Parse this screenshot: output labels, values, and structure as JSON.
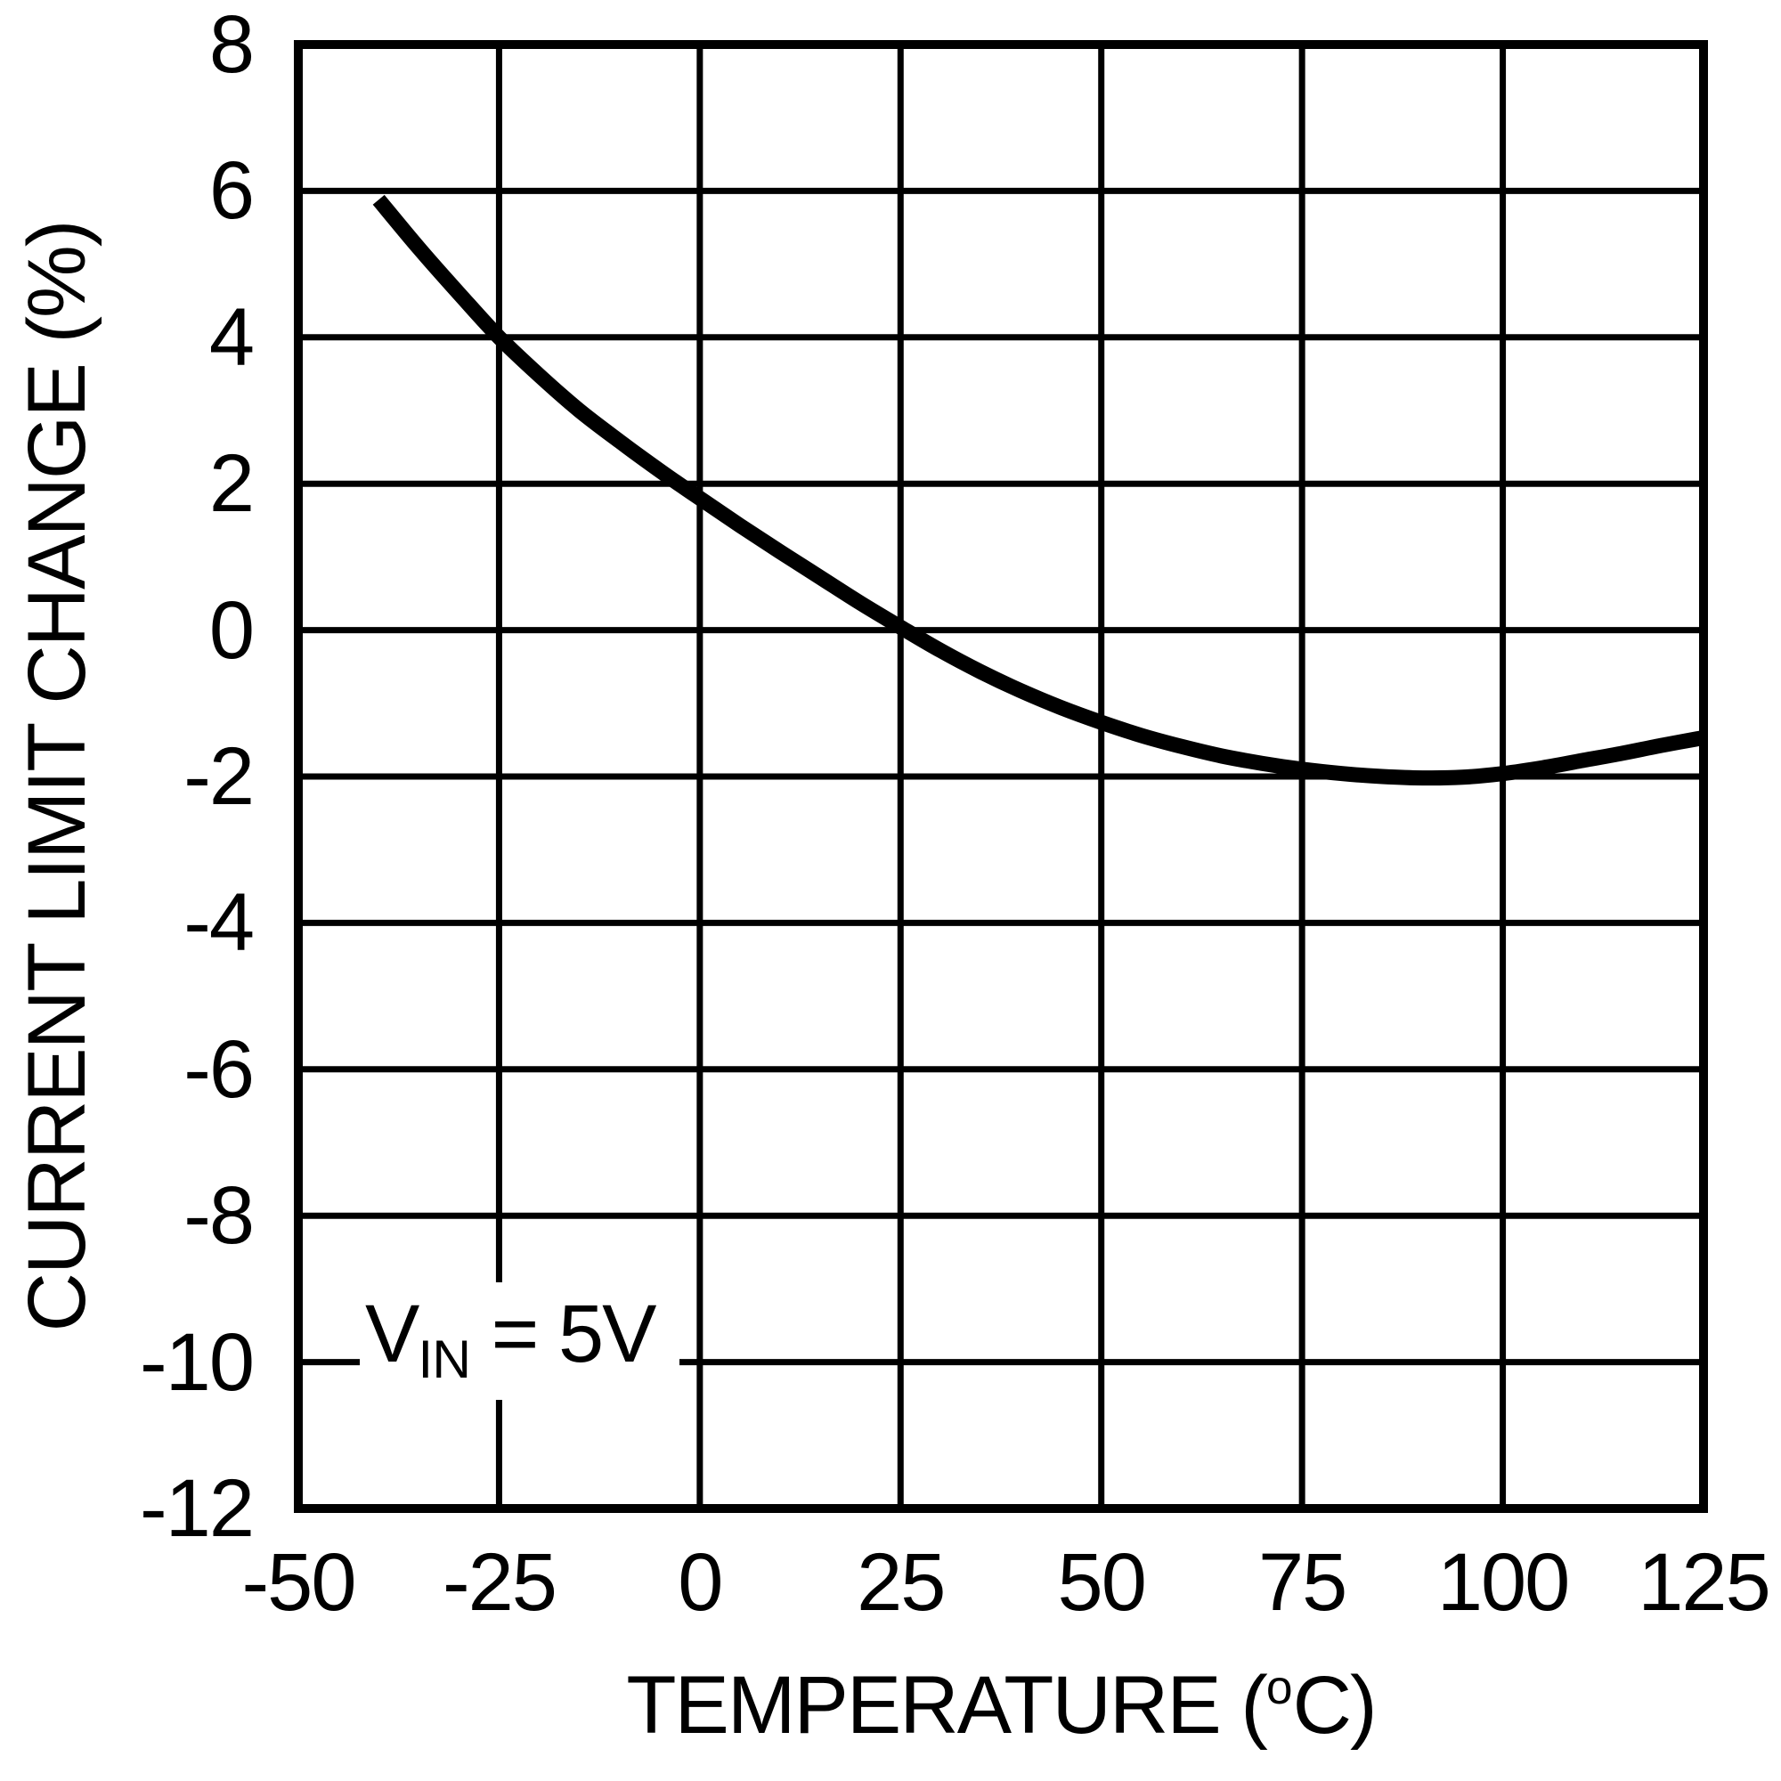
{
  "chart_data": {
    "type": "line",
    "title": "",
    "xlabel": {
      "pre": "TEMPERATURE (",
      "sup": "o",
      "post": "C)"
    },
    "ylabel": "CURRENT LIMIT CHANGE (%)",
    "x_ticks": [
      "-50",
      "-25",
      "0",
      "25",
      "50",
      "75",
      "100",
      "125"
    ],
    "y_ticks": [
      "8",
      "6",
      "4",
      "2",
      "0",
      "-2",
      "-4",
      "-6",
      "-8",
      "-10",
      "-12"
    ],
    "xlim": [
      -50,
      125
    ],
    "ylim": [
      -12,
      8
    ],
    "grid": true,
    "legend_position": "none",
    "line_color": "#000000",
    "grid_color": "#000000",
    "annotation": {
      "main": "V",
      "sub": "IN",
      "rest": " = 5V"
    },
    "series": [
      {
        "name": "current-limit-change",
        "points": [
          [
            -40,
            5.88
          ],
          [
            -35,
            5.22
          ],
          [
            -30,
            4.6
          ],
          [
            -25,
            4.0
          ],
          [
            -20,
            3.48
          ],
          [
            -15,
            3.0
          ],
          [
            -10,
            2.58
          ],
          [
            -5,
            2.18
          ],
          [
            0,
            1.8
          ],
          [
            5,
            1.43
          ],
          [
            10,
            1.07
          ],
          [
            15,
            0.72
          ],
          [
            20,
            0.37
          ],
          [
            25,
            0.04
          ],
          [
            30,
            -0.28
          ],
          [
            35,
            -0.57
          ],
          [
            40,
            -0.83
          ],
          [
            45,
            -1.06
          ],
          [
            50,
            -1.26
          ],
          [
            55,
            -1.44
          ],
          [
            60,
            -1.59
          ],
          [
            65,
            -1.72
          ],
          [
            70,
            -1.82
          ],
          [
            75,
            -1.9
          ],
          [
            80,
            -1.96
          ],
          [
            85,
            -2.0
          ],
          [
            90,
            -2.02
          ],
          [
            95,
            -2.01
          ],
          [
            100,
            -1.96
          ],
          [
            105,
            -1.88
          ],
          [
            110,
            -1.78
          ],
          [
            115,
            -1.68
          ],
          [
            120,
            -1.57
          ],
          [
            125,
            -1.47
          ]
        ]
      }
    ]
  }
}
